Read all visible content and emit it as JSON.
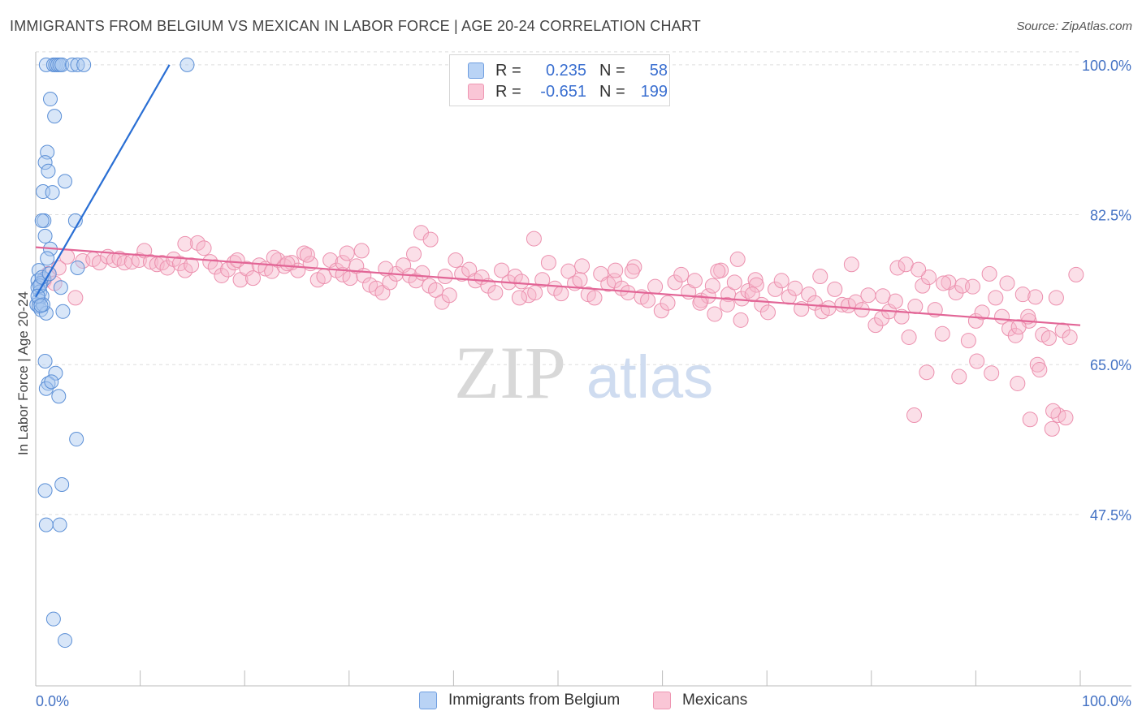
{
  "title": "IMMIGRANTS FROM BELGIUM VS MEXICAN IN LABOR FORCE | AGE 20-24 CORRELATION CHART",
  "source": "Source: ZipAtlas.com",
  "watermark": {
    "zip": "ZIP",
    "atlas": "atlas"
  },
  "legend": {
    "rows": [
      {
        "r_label": "R =",
        "r_value": "0.235",
        "n_label": "N =",
        "n_value": "58"
      },
      {
        "r_label": "R =",
        "r_value": "-0.651",
        "n_label": "N =",
        "n_value": "199"
      }
    ]
  },
  "bottom_legend": {
    "series1": "Immigrants from Belgium",
    "series2": "Mexicans"
  },
  "colors": {
    "series1_fill": "#a9c8f0",
    "series1_stroke": "#5b8fd6",
    "series1_line": "#2a6fd4",
    "series2_fill": "#f7b9cc",
    "series2_stroke": "#ec90ae",
    "series2_line": "#e26596",
    "tick_text": "#4472c4",
    "grid": "#dddddd"
  },
  "chart_data": {
    "type": "scatter",
    "title": "IMMIGRANTS FROM BELGIUM VS MEXICAN IN LABOR FORCE | AGE 20-24 CORRELATION CHART",
    "xlabel": "",
    "ylabel": "In Labor Force | Age 20-24",
    "xlim": [
      0,
      100
    ],
    "ylim": [
      27.5,
      101.5
    ],
    "x_tick_labels": [
      "0.0%",
      "100.0%"
    ],
    "y_ticks": [
      47.5,
      65.0,
      82.5,
      100.0
    ],
    "y_tick_labels": [
      "47.5%",
      "65.0%",
      "82.5%",
      "100.0%"
    ],
    "grid": true,
    "legend_position": "top-center",
    "series": [
      {
        "name": "Immigrants from Belgium",
        "r": 0.235,
        "n": 58,
        "trend": {
          "x": [
            0.0,
            12.8
          ],
          "y": [
            72.9,
            100.0
          ]
        },
        "points": [
          [
            1.0,
            100
          ],
          [
            1.7,
            100
          ],
          [
            1.9,
            100
          ],
          [
            2.1,
            100
          ],
          [
            2.3,
            100
          ],
          [
            2.5,
            100
          ],
          [
            3.5,
            100
          ],
          [
            4.0,
            100
          ],
          [
            4.6,
            100
          ],
          [
            14.5,
            100
          ],
          [
            1.4,
            96
          ],
          [
            1.8,
            94
          ],
          [
            1.1,
            89.8
          ],
          [
            0.9,
            88.6
          ],
          [
            1.2,
            87.6
          ],
          [
            2.8,
            86.4
          ],
          [
            0.7,
            85.2
          ],
          [
            1.6,
            85.1
          ],
          [
            0.8,
            81.8
          ],
          [
            0.6,
            81.8
          ],
          [
            3.8,
            81.8
          ],
          [
            0.9,
            80
          ],
          [
            1.4,
            78.5
          ],
          [
            1.1,
            77.4
          ],
          [
            4.0,
            76.3
          ],
          [
            0.3,
            76.0
          ],
          [
            0.8,
            75.0
          ],
          [
            0.2,
            74.8
          ],
          [
            0.5,
            74.5
          ],
          [
            0.2,
            74
          ],
          [
            2.4,
            74
          ],
          [
            0.4,
            73.5
          ],
          [
            0.6,
            73
          ],
          [
            0.3,
            72.5
          ],
          [
            0.1,
            72
          ],
          [
            0.3,
            71.8
          ],
          [
            0.5,
            71.4
          ],
          [
            1.0,
            71
          ],
          [
            2.6,
            71.2
          ],
          [
            0.7,
            72
          ],
          [
            0.9,
            65.4
          ],
          [
            1.9,
            64
          ],
          [
            1.2,
            62.8
          ],
          [
            1.0,
            62.2
          ],
          [
            2.2,
            61.3
          ],
          [
            3.9,
            56.3
          ],
          [
            2.5,
            51
          ],
          [
            0.9,
            50.3
          ],
          [
            1.0,
            46.3
          ],
          [
            2.3,
            46.3
          ],
          [
            1.7,
            35.3
          ],
          [
            2.8,
            32.8
          ],
          [
            1.5,
            63
          ],
          [
            0.4,
            74.2
          ],
          [
            0.6,
            75.2
          ],
          [
            1.3,
            75.6
          ],
          [
            0.2,
            73
          ],
          [
            0.5,
            71.9
          ]
        ]
      },
      {
        "name": "Mexicans",
        "r": -0.651,
        "n": 199,
        "trend": {
          "x": [
            0.0,
            100.0
          ],
          "y": [
            78.7,
            69.6
          ]
        },
        "points": [
          [
            0.8,
            74.8
          ],
          [
            1.2,
            75.6
          ],
          [
            1.8,
            74.5
          ],
          [
            2.2,
            76.3
          ],
          [
            3.0,
            77.6
          ],
          [
            3.8,
            72.8
          ],
          [
            4.5,
            77.1
          ],
          [
            5.5,
            77.3
          ],
          [
            6.1,
            76.9
          ],
          [
            6.9,
            77.6
          ],
          [
            7.5,
            77.2
          ],
          [
            8.0,
            77.4
          ],
          [
            8.5,
            76.9
          ],
          [
            9.2,
            77.0
          ],
          [
            9.9,
            77.2
          ],
          [
            10.4,
            78.3
          ],
          [
            11.0,
            77.0
          ],
          [
            11.6,
            76.7
          ],
          [
            12.1,
            76.9
          ],
          [
            12.6,
            76.3
          ],
          [
            13.2,
            77.3
          ],
          [
            13.8,
            76.8
          ],
          [
            14.3,
            76.0
          ],
          [
            14.9,
            76.6
          ],
          [
            15.5,
            79.2
          ],
          [
            16.1,
            78.6
          ],
          [
            16.7,
            77.0
          ],
          [
            17.2,
            76.4
          ],
          [
            17.8,
            75.4
          ],
          [
            18.4,
            76.1
          ],
          [
            19.0,
            76.9
          ],
          [
            19.6,
            74.9
          ],
          [
            20.2,
            76.2
          ],
          [
            20.8,
            75.1
          ],
          [
            21.4,
            76.6
          ],
          [
            22.0,
            76.2
          ],
          [
            22.6,
            75.9
          ],
          [
            23.2,
            77.2
          ],
          [
            23.8,
            76.5
          ],
          [
            24.5,
            76.9
          ],
          [
            25.1,
            76.0
          ],
          [
            25.7,
            78.0
          ],
          [
            26.3,
            76.8
          ],
          [
            27.0,
            74.9
          ],
          [
            27.6,
            75.3
          ],
          [
            28.2,
            77.2
          ],
          [
            28.8,
            76.0
          ],
          [
            29.4,
            75.5
          ],
          [
            30.1,
            75.1
          ],
          [
            30.7,
            76.5
          ],
          [
            31.4,
            75.4
          ],
          [
            32.0,
            74.3
          ],
          [
            32.6,
            73.9
          ],
          [
            33.2,
            73.4
          ],
          [
            33.9,
            74.6
          ],
          [
            34.5,
            75.6
          ],
          [
            35.2,
            76.6
          ],
          [
            35.8,
            75.4
          ],
          [
            36.4,
            74.8
          ],
          [
            37.0,
            75.7
          ],
          [
            37.7,
            74.2
          ],
          [
            38.3,
            73.7
          ],
          [
            38.9,
            72.3
          ],
          [
            39.6,
            73.1
          ],
          [
            40.2,
            77.2
          ],
          [
            40.8,
            75.6
          ],
          [
            41.5,
            76.1
          ],
          [
            42.1,
            74.8
          ],
          [
            42.7,
            75.2
          ],
          [
            43.3,
            74.2
          ],
          [
            44.0,
            73.4
          ],
          [
            44.6,
            76.0
          ],
          [
            45.3,
            74.6
          ],
          [
            45.9,
            75.3
          ],
          [
            46.5,
            74.7
          ],
          [
            47.2,
            73.1
          ],
          [
            47.8,
            73.4
          ],
          [
            48.5,
            74.9
          ],
          [
            49.1,
            76.9
          ],
          [
            49.7,
            73.9
          ],
          [
            50.3,
            73.3
          ],
          [
            51.0,
            75.9
          ],
          [
            51.6,
            74.5
          ],
          [
            52.3,
            76.5
          ],
          [
            52.9,
            73.2
          ],
          [
            53.5,
            72.8
          ],
          [
            54.1,
            75.6
          ],
          [
            54.8,
            74.4
          ],
          [
            55.4,
            74.8
          ],
          [
            56.1,
            73.9
          ],
          [
            56.7,
            73.4
          ],
          [
            57.3,
            76.4
          ],
          [
            58.0,
            72.9
          ],
          [
            58.6,
            72.5
          ],
          [
            59.3,
            74.1
          ],
          [
            59.9,
            71.3
          ],
          [
            60.5,
            72.2
          ],
          [
            61.2,
            74.6
          ],
          [
            61.8,
            75.5
          ],
          [
            62.5,
            73.5
          ],
          [
            63.1,
            74.8
          ],
          [
            63.7,
            72.5
          ],
          [
            64.4,
            73.0
          ],
          [
            65.0,
            70.9
          ],
          [
            65.6,
            76.0
          ],
          [
            66.3,
            73.2
          ],
          [
            66.9,
            74.6
          ],
          [
            67.6,
            72.7
          ],
          [
            68.2,
            73.6
          ],
          [
            68.9,
            74.9
          ],
          [
            69.5,
            72.0
          ],
          [
            70.1,
            71.1
          ],
          [
            70.8,
            73.8
          ],
          [
            71.4,
            74.8
          ],
          [
            72.1,
            72.9
          ],
          [
            72.7,
            73.9
          ],
          [
            73.3,
            71.5
          ],
          [
            74.0,
            73.2
          ],
          [
            74.6,
            72.2
          ],
          [
            75.3,
            71.2
          ],
          [
            75.9,
            71.6
          ],
          [
            76.5,
            73.8
          ],
          [
            77.2,
            72.0
          ],
          [
            77.8,
            71.9
          ],
          [
            78.5,
            72.3
          ],
          [
            79.1,
            71.4
          ],
          [
            79.7,
            73.1
          ],
          [
            80.4,
            69.6
          ],
          [
            81.0,
            70.4
          ],
          [
            81.7,
            71.2
          ],
          [
            82.3,
            72.4
          ],
          [
            82.9,
            70.6
          ],
          [
            83.6,
            68.2
          ],
          [
            84.2,
            71.8
          ],
          [
            84.9,
            74.2
          ],
          [
            85.5,
            75.2
          ],
          [
            86.1,
            71.4
          ],
          [
            86.8,
            68.6
          ],
          [
            87.4,
            74.6
          ],
          [
            88.1,
            73.4
          ],
          [
            88.7,
            74.2
          ],
          [
            89.3,
            67.8
          ],
          [
            90.0,
            70.1
          ],
          [
            90.6,
            71.1
          ],
          [
            91.3,
            75.6
          ],
          [
            91.9,
            72.8
          ],
          [
            92.5,
            70.6
          ],
          [
            93.2,
            69.2
          ],
          [
            93.8,
            68.4
          ],
          [
            94.5,
            73.2
          ],
          [
            95.1,
            70.1
          ],
          [
            95.7,
            72.9
          ],
          [
            96.4,
            68.5
          ],
          [
            97.0,
            68.1
          ],
          [
            97.7,
            72.8
          ],
          [
            98.3,
            69.0
          ],
          [
            99.0,
            68.2
          ],
          [
            99.6,
            75.5
          ],
          [
            85.3,
            64.1
          ],
          [
            88.4,
            63.6
          ],
          [
            90.1,
            65.4
          ],
          [
            91.5,
            64.0
          ],
          [
            94.0,
            62.8
          ],
          [
            95.9,
            65.0
          ],
          [
            96.1,
            64.4
          ],
          [
            94.1,
            69.4
          ],
          [
            97.9,
            59.1
          ],
          [
            97.4,
            59.6
          ],
          [
            98.6,
            58.8
          ],
          [
            97.3,
            57.5
          ],
          [
            95.2,
            58.6
          ],
          [
            84.1,
            59.1
          ],
          [
            47.7,
            79.7
          ],
          [
            36.9,
            80.4
          ],
          [
            37.8,
            79.6
          ],
          [
            31.2,
            78.3
          ],
          [
            29.4,
            76.9
          ],
          [
            26.0,
            77.8
          ],
          [
            22.8,
            77.5
          ],
          [
            14.3,
            79.1
          ],
          [
            19.3,
            77.2
          ],
          [
            24.1,
            76.8
          ],
          [
            29.8,
            78.0
          ],
          [
            33.5,
            76.2
          ],
          [
            36.2,
            77.9
          ],
          [
            39.2,
            75.3
          ],
          [
            46.3,
            72.8
          ],
          [
            52.1,
            74.9
          ],
          [
            55.5,
            76.0
          ],
          [
            57.1,
            75.9
          ],
          [
            63.6,
            72.2
          ],
          [
            65.3,
            75.9
          ],
          [
            67.2,
            77.3
          ],
          [
            67.5,
            70.2
          ],
          [
            69.0,
            74.3
          ],
          [
            75.1,
            75.3
          ],
          [
            78.1,
            76.7
          ],
          [
            81.1,
            73.0
          ],
          [
            82.5,
            76.3
          ],
          [
            83.3,
            76.7
          ],
          [
            84.5,
            76.1
          ],
          [
            86.9,
            74.5
          ],
          [
            89.7,
            74.1
          ],
          [
            93.0,
            74.5
          ],
          [
            95.0,
            70.6
          ],
          [
            64.8,
            74.2
          ],
          [
            66.2,
            72.0
          ],
          [
            68.6,
            73.2
          ]
        ]
      }
    ]
  }
}
